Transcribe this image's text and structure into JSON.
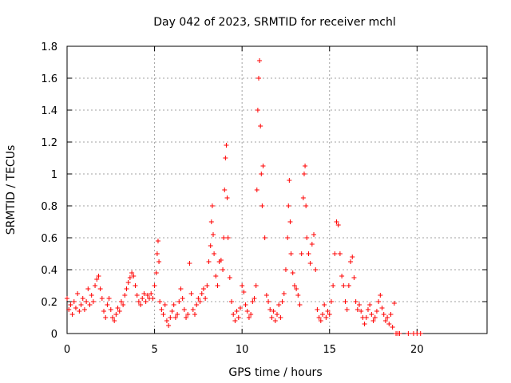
{
  "chart_data": {
    "type": "scatter",
    "title": "Day 042 of 2023, SRMTID for receiver mchl",
    "xlabel": "GPS time / hours",
    "ylabel": "SRMTID / TECUs",
    "xlim": [
      0,
      24
    ],
    "ylim": [
      0,
      1.8
    ],
    "xticks": [
      0,
      5,
      10,
      15,
      20
    ],
    "xtick_labels": [
      "0",
      "5",
      "10",
      "15",
      "20"
    ],
    "yticks": [
      0,
      0.2,
      0.4,
      0.6,
      0.8,
      1.0,
      1.2,
      1.4,
      1.6,
      1.8
    ],
    "ytick_labels": [
      "0",
      "0.2",
      "0.4",
      "0.6",
      "0.8",
      "1",
      "1.2",
      "1.4",
      "1.6",
      "1.8"
    ],
    "grid": true,
    "marker": "+",
    "color": "#ff0000",
    "series": [
      {
        "name": "SRMTID",
        "points": [
          [
            0.0,
            0.22
          ],
          [
            0.1,
            0.15
          ],
          [
            0.2,
            0.18
          ],
          [
            0.3,
            0.12
          ],
          [
            0.4,
            0.2
          ],
          [
            0.5,
            0.16
          ],
          [
            0.6,
            0.25
          ],
          [
            0.7,
            0.14
          ],
          [
            0.8,
            0.18
          ],
          [
            0.9,
            0.22
          ],
          [
            1.0,
            0.15
          ],
          [
            1.1,
            0.2
          ],
          [
            1.2,
            0.28
          ],
          [
            1.3,
            0.18
          ],
          [
            1.4,
            0.24
          ],
          [
            1.5,
            0.2
          ],
          [
            1.6,
            0.3
          ],
          [
            1.7,
            0.34
          ],
          [
            1.8,
            0.36
          ],
          [
            1.9,
            0.28
          ],
          [
            2.0,
            0.22
          ],
          [
            2.1,
            0.14
          ],
          [
            2.2,
            0.1
          ],
          [
            2.3,
            0.18
          ],
          [
            2.4,
            0.22
          ],
          [
            2.5,
            0.15
          ],
          [
            2.6,
            0.1
          ],
          [
            2.7,
            0.08
          ],
          [
            2.8,
            0.12
          ],
          [
            2.9,
            0.16
          ],
          [
            3.0,
            0.14
          ],
          [
            3.1,
            0.2
          ],
          [
            3.2,
            0.18
          ],
          [
            3.3,
            0.24
          ],
          [
            3.4,
            0.28
          ],
          [
            3.5,
            0.32
          ],
          [
            3.6,
            0.35
          ],
          [
            3.7,
            0.38
          ],
          [
            3.8,
            0.36
          ],
          [
            3.9,
            0.3
          ],
          [
            4.0,
            0.24
          ],
          [
            4.1,
            0.2
          ],
          [
            4.2,
            0.18
          ],
          [
            4.3,
            0.22
          ],
          [
            4.4,
            0.25
          ],
          [
            4.5,
            0.2
          ],
          [
            4.6,
            0.24
          ],
          [
            4.7,
            0.22
          ],
          [
            4.8,
            0.25
          ],
          [
            4.9,
            0.22
          ],
          [
            5.0,
            0.3
          ],
          [
            5.1,
            0.38
          ],
          [
            5.15,
            0.5
          ],
          [
            5.2,
            0.58
          ],
          [
            5.25,
            0.45
          ],
          [
            5.3,
            0.2
          ],
          [
            5.4,
            0.15
          ],
          [
            5.5,
            0.12
          ],
          [
            5.6,
            0.18
          ],
          [
            5.7,
            0.08
          ],
          [
            5.8,
            0.05
          ],
          [
            5.9,
            0.1
          ],
          [
            6.0,
            0.14
          ],
          [
            6.1,
            0.18
          ],
          [
            6.2,
            0.1
          ],
          [
            6.3,
            0.12
          ],
          [
            6.4,
            0.2
          ],
          [
            6.5,
            0.28
          ],
          [
            6.6,
            0.22
          ],
          [
            6.7,
            0.15
          ],
          [
            6.8,
            0.1
          ],
          [
            6.9,
            0.12
          ],
          [
            7.0,
            0.44
          ],
          [
            7.1,
            0.25
          ],
          [
            7.2,
            0.15
          ],
          [
            7.3,
            0.12
          ],
          [
            7.4,
            0.18
          ],
          [
            7.5,
            0.22
          ],
          [
            7.6,
            0.2
          ],
          [
            7.7,
            0.25
          ],
          [
            7.8,
            0.28
          ],
          [
            7.9,
            0.22
          ],
          [
            8.0,
            0.3
          ],
          [
            8.1,
            0.45
          ],
          [
            8.2,
            0.55
          ],
          [
            8.25,
            0.7
          ],
          [
            8.3,
            0.8
          ],
          [
            8.35,
            0.62
          ],
          [
            8.4,
            0.5
          ],
          [
            8.5,
            0.36
          ],
          [
            8.6,
            0.3
          ],
          [
            8.7,
            0.45
          ],
          [
            8.8,
            0.46
          ],
          [
            8.9,
            0.4
          ],
          [
            8.95,
            0.6
          ],
          [
            9.0,
            0.9
          ],
          [
            9.05,
            1.1
          ],
          [
            9.1,
            1.18
          ],
          [
            9.15,
            0.85
          ],
          [
            9.2,
            0.6
          ],
          [
            9.3,
            0.35
          ],
          [
            9.4,
            0.2
          ],
          [
            9.5,
            0.12
          ],
          [
            9.6,
            0.08
          ],
          [
            9.7,
            0.14
          ],
          [
            9.8,
            0.1
          ],
          [
            9.9,
            0.16
          ],
          [
            10.0,
            0.3
          ],
          [
            10.1,
            0.26
          ],
          [
            10.2,
            0.18
          ],
          [
            10.3,
            0.14
          ],
          [
            10.4,
            0.1
          ],
          [
            10.5,
            0.12
          ],
          [
            10.6,
            0.2
          ],
          [
            10.7,
            0.22
          ],
          [
            10.8,
            0.3
          ],
          [
            10.85,
            0.9
          ],
          [
            10.9,
            1.4
          ],
          [
            10.95,
            1.6
          ],
          [
            11.0,
            1.71
          ],
          [
            11.05,
            1.3
          ],
          [
            11.1,
            1.0
          ],
          [
            11.15,
            0.8
          ],
          [
            11.2,
            1.05
          ],
          [
            11.3,
            0.6
          ],
          [
            11.4,
            0.24
          ],
          [
            11.5,
            0.2
          ],
          [
            11.6,
            0.15
          ],
          [
            11.7,
            0.1
          ],
          [
            11.8,
            0.14
          ],
          [
            11.9,
            0.08
          ],
          [
            12.0,
            0.12
          ],
          [
            12.1,
            0.18
          ],
          [
            12.2,
            0.1
          ],
          [
            12.3,
            0.2
          ],
          [
            12.4,
            0.25
          ],
          [
            12.5,
            0.4
          ],
          [
            12.6,
            0.6
          ],
          [
            12.65,
            0.8
          ],
          [
            12.7,
            0.96
          ],
          [
            12.75,
            0.7
          ],
          [
            12.8,
            0.5
          ],
          [
            12.9,
            0.38
          ],
          [
            13.0,
            0.3
          ],
          [
            13.1,
            0.28
          ],
          [
            13.2,
            0.24
          ],
          [
            13.3,
            0.18
          ],
          [
            13.4,
            0.5
          ],
          [
            13.5,
            0.85
          ],
          [
            13.55,
            1.0
          ],
          [
            13.6,
            1.05
          ],
          [
            13.65,
            0.8
          ],
          [
            13.7,
            0.6
          ],
          [
            13.8,
            0.5
          ],
          [
            13.9,
            0.44
          ],
          [
            14.0,
            0.56
          ],
          [
            14.1,
            0.62
          ],
          [
            14.2,
            0.4
          ],
          [
            14.3,
            0.15
          ],
          [
            14.4,
            0.1
          ],
          [
            14.5,
            0.08
          ],
          [
            14.6,
            0.12
          ],
          [
            14.7,
            0.18
          ],
          [
            14.8,
            0.1
          ],
          [
            14.9,
            0.14
          ],
          [
            15.0,
            0.12
          ],
          [
            15.1,
            0.2
          ],
          [
            15.2,
            0.3
          ],
          [
            15.3,
            0.5
          ],
          [
            15.4,
            0.7
          ],
          [
            15.5,
            0.68
          ],
          [
            15.6,
            0.5
          ],
          [
            15.7,
            0.36
          ],
          [
            15.8,
            0.3
          ],
          [
            15.9,
            0.2
          ],
          [
            16.0,
            0.15
          ],
          [
            16.1,
            0.3
          ],
          [
            16.2,
            0.45
          ],
          [
            16.3,
            0.48
          ],
          [
            16.4,
            0.35
          ],
          [
            16.5,
            0.2
          ],
          [
            16.6,
            0.15
          ],
          [
            16.7,
            0.18
          ],
          [
            16.8,
            0.14
          ],
          [
            16.9,
            0.1
          ],
          [
            17.0,
            0.06
          ],
          [
            17.1,
            0.1
          ],
          [
            17.2,
            0.15
          ],
          [
            17.3,
            0.18
          ],
          [
            17.4,
            0.12
          ],
          [
            17.5,
            0.08
          ],
          [
            17.6,
            0.1
          ],
          [
            17.7,
            0.14
          ],
          [
            17.8,
            0.2
          ],
          [
            17.9,
            0.24
          ],
          [
            18.0,
            0.16
          ],
          [
            18.1,
            0.12
          ],
          [
            18.2,
            0.08
          ],
          [
            18.3,
            0.1
          ],
          [
            18.4,
            0.06
          ],
          [
            18.5,
            0.12
          ],
          [
            18.6,
            0.04
          ],
          [
            18.7,
            0.19
          ],
          [
            18.8,
            0.0
          ],
          [
            18.9,
            0.0
          ],
          [
            19.0,
            0.0
          ],
          [
            19.5,
            0.0
          ],
          [
            19.8,
            0.0
          ],
          [
            20.0,
            0.0
          ],
          [
            20.2,
            0.0
          ]
        ]
      }
    ]
  }
}
